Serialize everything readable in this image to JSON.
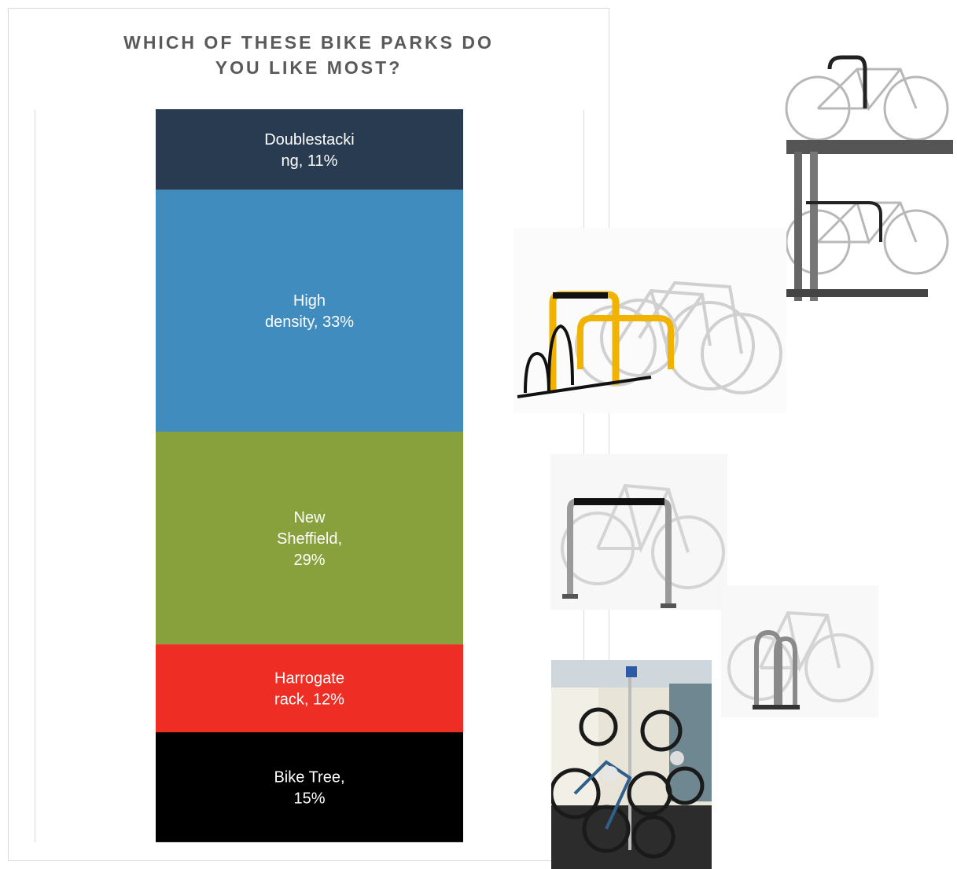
{
  "chart_data": {
    "type": "bar",
    "stacked": true,
    "title_lines": [
      "WHICH OF THESE BIKE PARKS DO",
      "YOU LIKE MOST?"
    ],
    "categories": [
      "Doublestacking",
      "High density",
      "New Sheffield",
      "Harrogate rack",
      "Bike Tree"
    ],
    "values": [
      11,
      33,
      29,
      12,
      15
    ],
    "unit": "%",
    "labels": [
      [
        "Doublestacki",
        "ng, 11%"
      ],
      [
        "High",
        "density, 33%"
      ],
      [
        "New",
        "Sheffield,",
        "29%"
      ],
      [
        "Harrogate",
        "rack, 12%"
      ],
      [
        "Bike Tree,",
        "15%"
      ]
    ],
    "colors": [
      "#283b50",
      "#408cbf",
      "#88a13c",
      "#ee2d24",
      "#000000"
    ],
    "legend": "none",
    "grid": false
  },
  "photos": [
    {
      "name": "double-stack-rack-photo",
      "subject": "double-stacking bike rack"
    },
    {
      "name": "high-density-rack-photo",
      "subject": "high density bike rack"
    },
    {
      "name": "sheffield-stand-photo",
      "subject": "new sheffield stand"
    },
    {
      "name": "harrogate-rack-photo",
      "subject": "harrogate rack"
    },
    {
      "name": "bike-tree-photo",
      "subject": "bike tree"
    }
  ]
}
